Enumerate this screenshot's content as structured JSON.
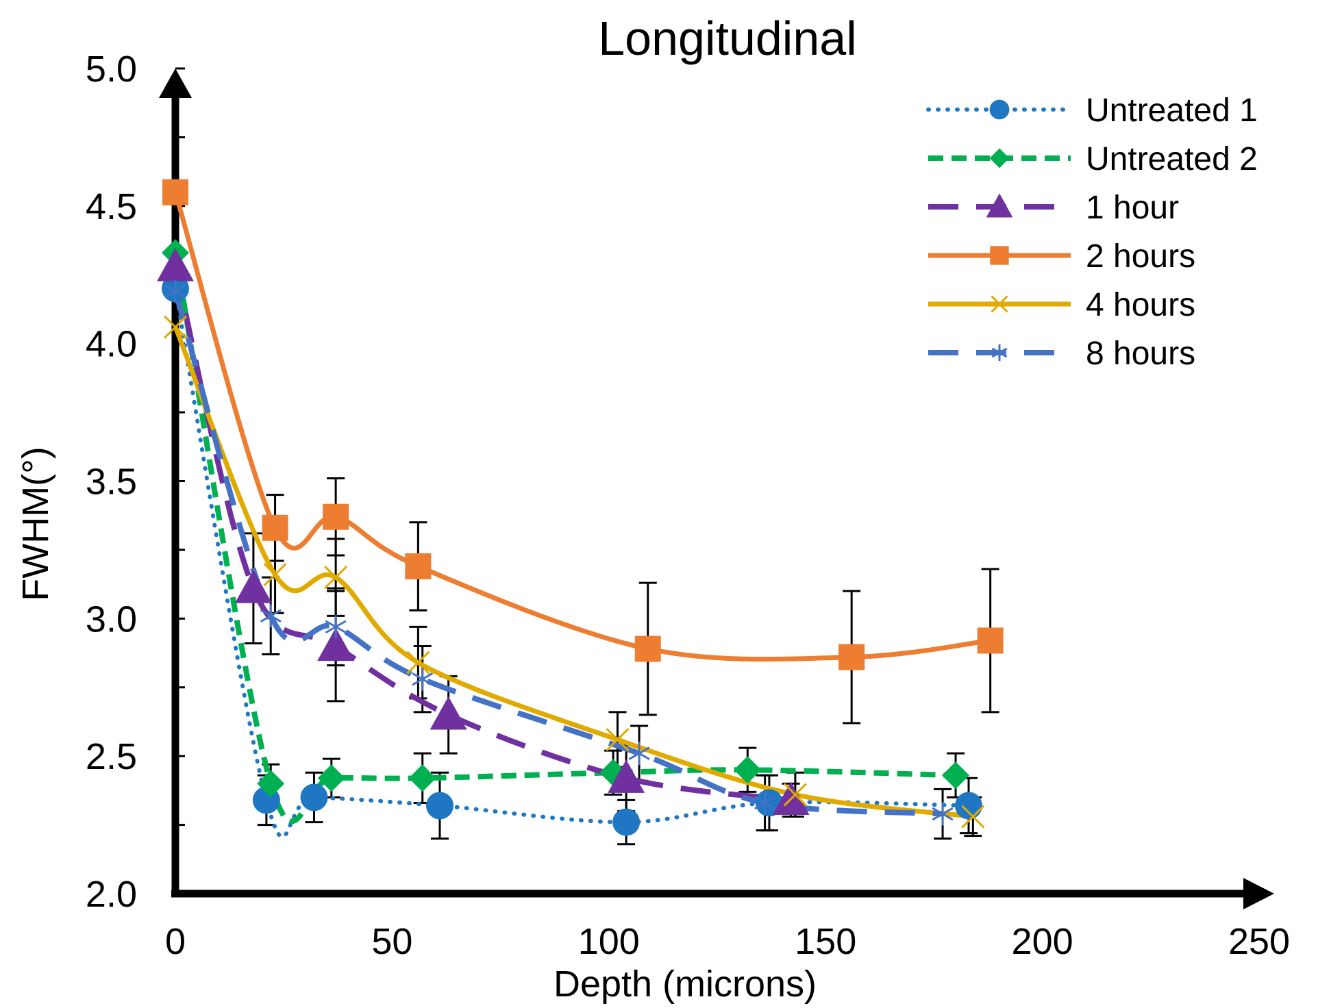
{
  "chart_data": {
    "type": "line",
    "title": "Longitudinal",
    "xlabel": "Depth (microns)",
    "ylabel": "FWHM(°)",
    "xlim": [
      0,
      250
    ],
    "ylim": [
      2.0,
      5.0
    ],
    "xticks": [
      "0",
      "50",
      "100",
      "150",
      "200",
      "250"
    ],
    "yticks": [
      "2.0",
      "2.5",
      "3.0",
      "3.5",
      "4.0",
      "4.5",
      "5.0"
    ],
    "legend_position": "top-right",
    "grid": false,
    "series": [
      {
        "name": "Untreated 1",
        "color": "#1f77c4",
        "line_style": "dotted",
        "marker": "circle",
        "x": [
          0,
          21,
          32,
          61,
          104,
          137,
          183
        ],
        "y": [
          4.2,
          2.34,
          2.35,
          2.32,
          2.26,
          2.33,
          2.32
        ],
        "err": [
          0.0,
          0.09,
          0.09,
          0.12,
          0.08,
          0.1,
          0.1
        ]
      },
      {
        "name": "Untreated 2",
        "color": "#00b050",
        "line_style": "short-dash",
        "marker": "diamond",
        "x": [
          0,
          22,
          36,
          57,
          101,
          132,
          180
        ],
        "y": [
          4.33,
          2.4,
          2.42,
          2.42,
          2.44,
          2.45,
          2.43
        ],
        "err": [
          0.0,
          0.07,
          0.07,
          0.09,
          0.08,
          0.08,
          0.08
        ]
      },
      {
        "name": "1 hour",
        "color": "#7030a0",
        "line_style": "long-dash",
        "marker": "triangle",
        "x": [
          0,
          18,
          37,
          63,
          104,
          142
        ],
        "y": [
          4.28,
          3.11,
          2.9,
          2.65,
          2.42,
          2.34
        ],
        "err": [
          0.0,
          0.2,
          0.2,
          0.14,
          0.12,
          0.06
        ]
      },
      {
        "name": "2 hours",
        "color": "#ed7d31",
        "line_style": "solid",
        "marker": "square",
        "x": [
          0,
          23,
          37,
          56,
          109,
          156,
          188
        ],
        "y": [
          4.55,
          3.33,
          3.37,
          3.19,
          2.89,
          2.86,
          2.92
        ],
        "err": [
          0.0,
          0.12,
          0.14,
          0.16,
          0.24,
          0.24,
          0.26
        ]
      },
      {
        "name": "4 hours",
        "color": "#e0aa00",
        "line_style": "solid",
        "marker": "x",
        "x": [
          0,
          23,
          37,
          56,
          102,
          143,
          184
        ],
        "y": [
          4.06,
          3.16,
          3.15,
          2.84,
          2.56,
          2.36,
          2.28
        ],
        "err": [
          0.0,
          0.14,
          0.14,
          0.13,
          0.1,
          0.08,
          0.07
        ]
      },
      {
        "name": "8 hours",
        "color": "#4472c4",
        "line_style": "long-dash",
        "marker": "asterisk",
        "x": [
          0,
          22,
          37,
          57,
          107,
          136,
          177
        ],
        "y": [
          4.19,
          3.01,
          2.97,
          2.78,
          2.51,
          2.33,
          2.29
        ],
        "err": [
          0.0,
          0.14,
          0.14,
          0.12,
          0.1,
          0.1,
          0.09
        ]
      }
    ]
  }
}
